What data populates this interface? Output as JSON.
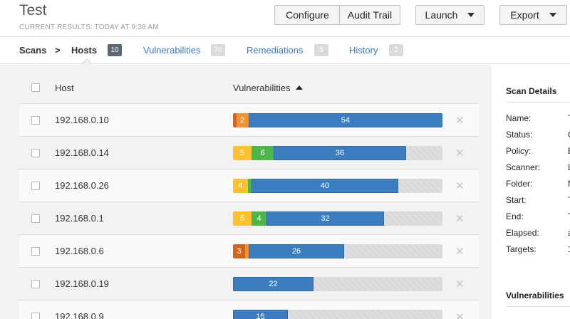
{
  "header": {
    "title": "Test",
    "subtitle": "CURRENT RESULTS: TODAY AT 9:38 AM",
    "configure_label": "Configure",
    "audit_trail_label": "Audit Trail",
    "launch_label": "Launch",
    "export_label": "Export"
  },
  "tabs": {
    "scans": "Scans",
    "separator": ">",
    "hosts": "Hosts",
    "hosts_count": "10",
    "vulnerabilities": "Vulnerabilities",
    "vulnerabilities_count": "76",
    "remediations": "Remediations",
    "remediations_count": "5",
    "history": "History",
    "history_count": "2"
  },
  "table": {
    "col_host": "Host",
    "col_vulnerabilities": "Vulnerabilities",
    "rows": [
      {
        "host": "192.168.0.10",
        "segments": [
          {
            "sev": "critical",
            "count": 1,
            "label": ""
          },
          {
            "sev": "high",
            "count": 2,
            "label": "2"
          },
          {
            "sev": "info",
            "count": 54,
            "label": "54"
          }
        ]
      },
      {
        "host": "192.168.0.14",
        "segments": [
          {
            "sev": "medium",
            "count": 5,
            "label": "5"
          },
          {
            "sev": "low",
            "count": 6,
            "label": "6"
          },
          {
            "sev": "info",
            "count": 36,
            "label": "36"
          }
        ]
      },
      {
        "host": "192.168.0.26",
        "segments": [
          {
            "sev": "medium",
            "count": 4,
            "label": "4"
          },
          {
            "sev": "low",
            "count": 1,
            "label": ""
          },
          {
            "sev": "info",
            "count": 40,
            "label": "40"
          }
        ]
      },
      {
        "host": "192.168.0.1",
        "segments": [
          {
            "sev": "medium",
            "count": 5,
            "label": "5"
          },
          {
            "sev": "low",
            "count": 4,
            "label": "4"
          },
          {
            "sev": "info",
            "count": 32,
            "label": "32"
          }
        ]
      },
      {
        "host": "192.168.0.6",
        "segments": [
          {
            "sev": "critical",
            "count": 3,
            "label": "3"
          },
          {
            "sev": "high",
            "count": 1,
            "label": ""
          },
          {
            "sev": "info",
            "count": 26,
            "label": "26"
          }
        ]
      },
      {
        "host": "192.168.0.19",
        "segments": [
          {
            "sev": "info",
            "count": 22,
            "label": "22"
          }
        ]
      },
      {
        "host": "192.168.0.9",
        "segments": [
          {
            "sev": "info",
            "count": 15,
            "label": "15"
          }
        ]
      }
    ],
    "bar_max": 57
  },
  "sidebar": {
    "scan_details_title": "Scan Details",
    "details": [
      {
        "label": "Name:",
        "value": "T"
      },
      {
        "label": "Status:",
        "value": "C"
      },
      {
        "label": "Policy:",
        "value": "B"
      },
      {
        "label": "Scanner:",
        "value": "L"
      },
      {
        "label": "Folder:",
        "value": "M"
      },
      {
        "label": "Start:",
        "value": "T"
      },
      {
        "label": "End:",
        "value": "T"
      },
      {
        "label": "Elapsed:",
        "value": "a"
      },
      {
        "label": "Targets:",
        "value": "1"
      }
    ],
    "vulnerabilities_title": "Vulnerabilities"
  },
  "colors": {
    "critical": "#d4631e",
    "high": "#ee9336",
    "medium": "#fdc02f",
    "low": "#4cb748",
    "info": "#3c7dbf",
    "link": "#3a7bbf"
  }
}
